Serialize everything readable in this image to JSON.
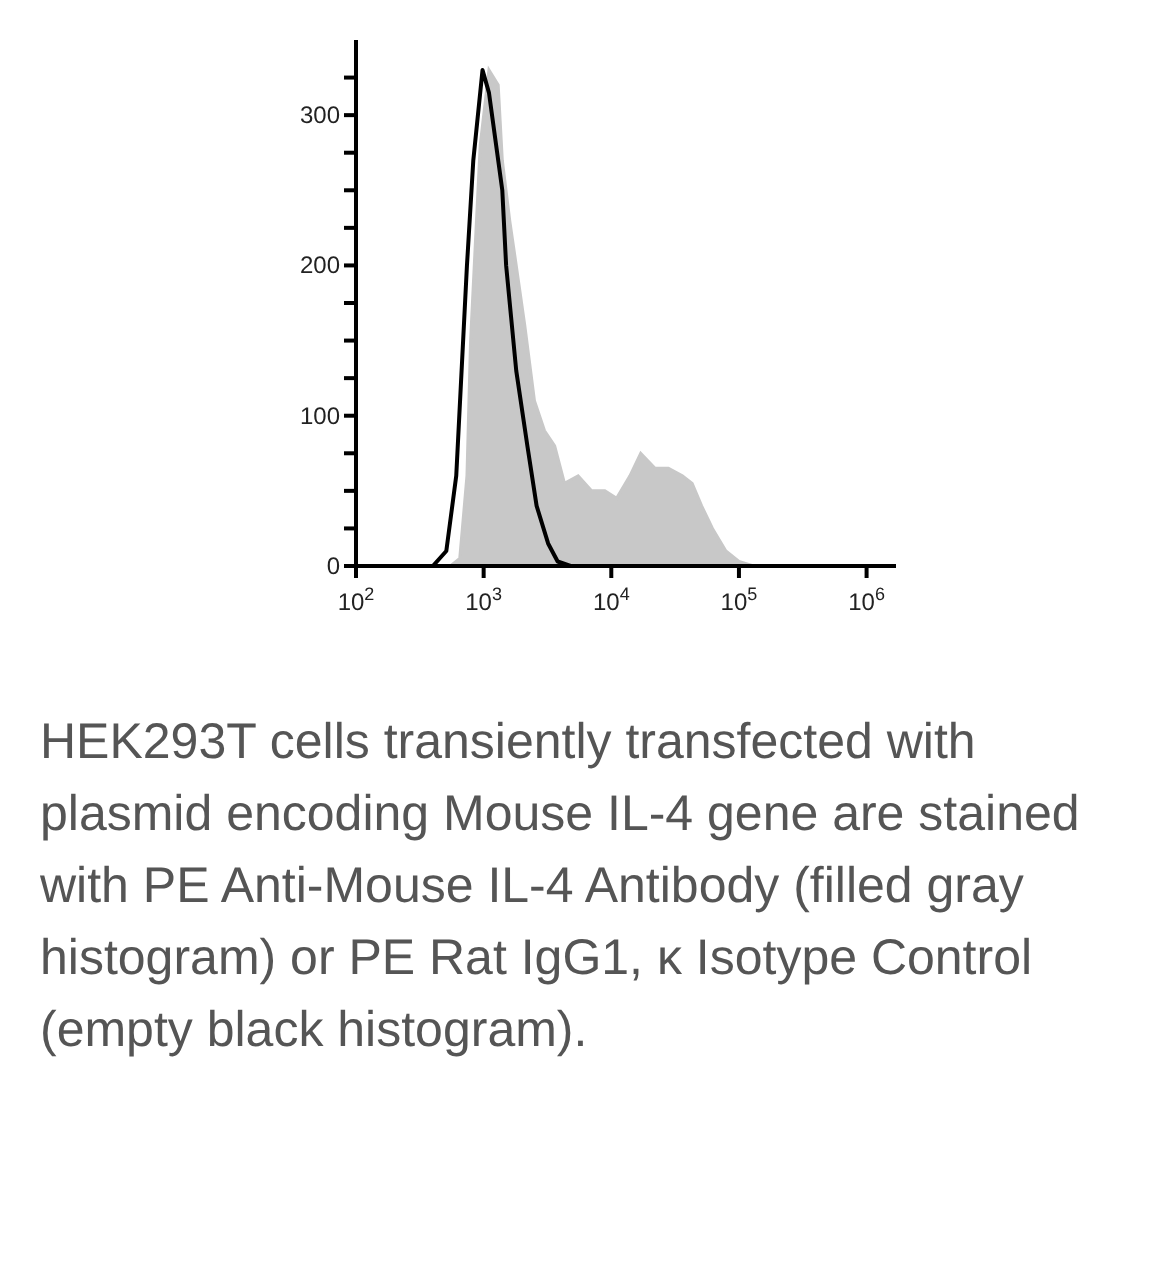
{
  "chart_data": {
    "type": "area",
    "series": [
      {
        "color": "#c8c8c8",
        "x": [
          100,
          550,
          650,
          740,
          790,
          940,
          1100,
          1300,
          1400,
          1600,
          1800,
          2100,
          2500,
          3000,
          3600,
          4300,
          5500,
          7000,
          8900,
          11000,
          14000,
          17000,
          22000,
          28000,
          36000,
          43000,
          51000,
          62000,
          79000,
          100000,
          130000,
          1700000
        ],
        "values": [
          0,
          0,
          5,
          60,
          150,
          280,
          330,
          320,
          270,
          230,
          200,
          160,
          110,
          90,
          80,
          55,
          60,
          50,
          50,
          45,
          60,
          75,
          65,
          65,
          60,
          55,
          40,
          25,
          10,
          3,
          0,
          0
        ]
      },
      {
        "type": "line",
        "color": "#000000",
        "x": [
          400,
          510,
          610,
          740,
          830,
          980,
          1100,
          1400,
          1500,
          1800,
          2200,
          2600,
          3200,
          3800,
          4800
        ],
        "values": [
          0,
          10,
          60,
          200,
          270,
          330,
          315,
          250,
          200,
          130,
          80,
          40,
          15,
          3,
          0
        ]
      }
    ],
    "log": "x",
    "xlim": [
      100,
      1700000
    ],
    "xticks": [
      {
        "value": 100,
        "label": "10$^{2}$"
      },
      {
        "value": 1000,
        "label": "10$^{3}$"
      },
      {
        "value": 10000,
        "label": "10$^{4}$"
      },
      {
        "value": 100000,
        "label": "10$^{5}$"
      },
      {
        "value": 1000000,
        "label": "10$^{6}$"
      }
    ],
    "ylim": [
      0,
      350
    ],
    "yticks": [
      0,
      {
        "value": 25,
        "label": null
      },
      {
        "value": 50,
        "label": null
      },
      {
        "value": 75,
        "label": null
      },
      100,
      {
        "value": 125,
        "label": null
      },
      {
        "value": 150,
        "label": null
      },
      {
        "value": 175,
        "label": null
      },
      200,
      {
        "value": 225,
        "label": null
      },
      {
        "value": 250,
        "label": null
      },
      {
        "value": 275,
        "label": null
      },
      300,
      {
        "value": 325,
        "label": null
      }
    ],
    "grid": false,
    "legend": false,
    "annotations": [
      "HEK293T cells transiently transfected with plasmid encoding Mouse IL-4 gene are stained with PE Anti-Mouse IL-4 Antibody (filled gray histogram) or PE Rat IgG1, κ Isotype Control (empty black histogram)."
    ]
  }
}
